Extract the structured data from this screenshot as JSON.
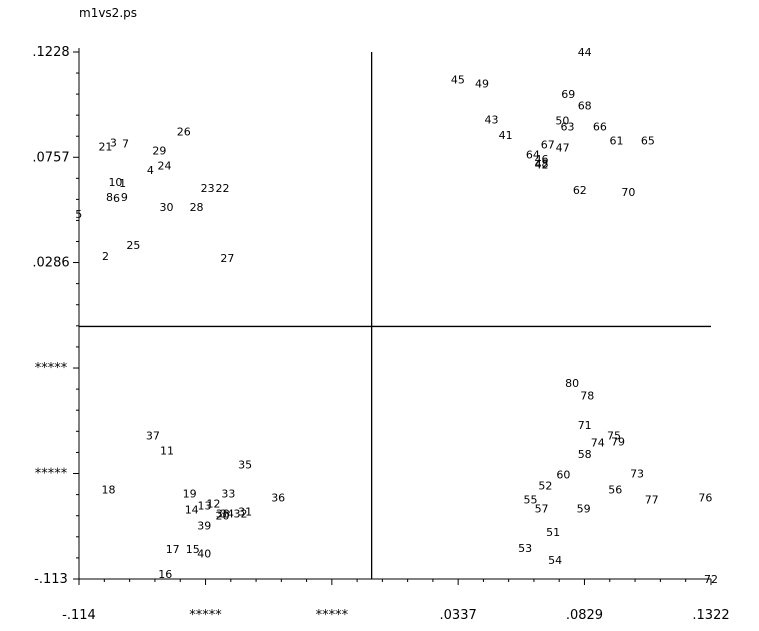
{
  "window": {
    "title": "m1vs2.ps"
  },
  "chart_data": {
    "type": "scatter",
    "title": "m1vs2.ps",
    "xlabel": "",
    "ylabel": "",
    "xlim": [
      -0.114,
      0.1322
    ],
    "ylim": [
      -0.113,
      0.1228
    ],
    "x_ticks": [
      {
        "value": -0.114,
        "label": "-.114"
      },
      {
        "value": -0.0647,
        "label": "*****"
      },
      {
        "value": -0.0155,
        "label": "*****"
      },
      {
        "value": 0.0337,
        "label": ".0337"
      },
      {
        "value": 0.0829,
        "label": ".0829"
      },
      {
        "value": 0.1322,
        "label": ".1322"
      }
    ],
    "y_ticks": [
      {
        "value": 0.1228,
        "label": ".1228"
      },
      {
        "value": 0.0757,
        "label": ".0757"
      },
      {
        "value": 0.0286,
        "label": ".0286"
      },
      {
        "value": -0.0186,
        "label": "*****"
      },
      {
        "value": -0.0658,
        "label": "*****"
      },
      {
        "value": -0.113,
        "label": "-.113"
      }
    ],
    "crosshair": {
      "x": 0.0,
      "y": 0.0
    },
    "grid": false,
    "points": [
      {
        "label": "1",
        "x": -0.097,
        "y": 0.0641
      },
      {
        "label": "2",
        "x": -0.1037,
        "y": 0.0316
      },
      {
        "label": "3",
        "x": -0.1006,
        "y": 0.0823
      },
      {
        "label": "4",
        "x": -0.0862,
        "y": 0.0699
      },
      {
        "label": "5",
        "x": -0.1141,
        "y": 0.0503
      },
      {
        "label": "6",
        "x": -0.0994,
        "y": 0.0574
      },
      {
        "label": "7",
        "x": -0.0959,
        "y": 0.0818
      },
      {
        "label": "8",
        "x": -0.1021,
        "y": 0.0579
      },
      {
        "label": "9",
        "x": -0.0963,
        "y": 0.0579
      },
      {
        "label": "10",
        "x": -0.0998,
        "y": 0.0646
      },
      {
        "label": "11",
        "x": -0.0797,
        "y": -0.0554
      },
      {
        "label": "12",
        "x": -0.0616,
        "y": -0.0792
      },
      {
        "label": "13",
        "x": -0.0651,
        "y": -0.0801
      },
      {
        "label": "14",
        "x": -0.0701,
        "y": -0.0819
      },
      {
        "label": "15",
        "x": -0.0697,
        "y": -0.0996
      },
      {
        "label": "16",
        "x": -0.0804,
        "y": -0.1108
      },
      {
        "label": "17",
        "x": -0.0775,
        "y": -0.0996
      },
      {
        "label": "18",
        "x": -0.1025,
        "y": -0.0729
      },
      {
        "label": "19",
        "x": -0.0709,
        "y": -0.0747
      },
      {
        "label": "20",
        "x": -0.0581,
        "y": -0.0846
      },
      {
        "label": "21",
        "x": -0.1037,
        "y": 0.0805
      },
      {
        "label": "22",
        "x": -0.0581,
        "y": 0.0619
      },
      {
        "label": "23",
        "x": -0.0639,
        "y": 0.0619
      },
      {
        "label": "24",
        "x": -0.0807,
        "y": 0.0721
      },
      {
        "label": "25",
        "x": -0.0928,
        "y": 0.0364
      },
      {
        "label": "26",
        "x": -0.0732,
        "y": 0.0873
      },
      {
        "label": "27",
        "x": -0.0562,
        "y": 0.0306
      },
      {
        "label": "28",
        "x": -0.0682,
        "y": 0.0534
      },
      {
        "label": "29",
        "x": -0.0827,
        "y": 0.0788
      },
      {
        "label": "30",
        "x": -0.0799,
        "y": 0.0534
      },
      {
        "label": "31",
        "x": -0.0493,
        "y": -0.0828
      },
      {
        "label": "32",
        "x": -0.0511,
        "y": -0.0838
      },
      {
        "label": "33",
        "x": -0.0558,
        "y": -0.0747
      },
      {
        "label": "34",
        "x": -0.0564,
        "y": -0.0837
      },
      {
        "label": "35",
        "x": -0.0493,
        "y": -0.0618
      },
      {
        "label": "36",
        "x": -0.0364,
        "y": -0.0765
      },
      {
        "label": "37",
        "x": -0.0852,
        "y": -0.0488
      },
      {
        "label": "38",
        "x": -0.058,
        "y": -0.0837
      },
      {
        "label": "39",
        "x": -0.0652,
        "y": -0.089
      },
      {
        "label": "40",
        "x": -0.0652,
        "y": -0.1015
      },
      {
        "label": "41",
        "x": 0.0522,
        "y": 0.0856
      },
      {
        "label": "42",
        "x": 0.0662,
        "y": 0.0724
      },
      {
        "label": "43",
        "x": 0.0467,
        "y": 0.0925
      },
      {
        "label": "44",
        "x": 0.083,
        "y": 0.1228
      },
      {
        "label": "45",
        "x": 0.0336,
        "y": 0.1106
      },
      {
        "label": "46",
        "x": 0.0662,
        "y": 0.075
      },
      {
        "label": "47",
        "x": 0.0744,
        "y": 0.08
      },
      {
        "label": "48",
        "x": 0.0662,
        "y": 0.0728
      },
      {
        "label": "49",
        "x": 0.043,
        "y": 0.1086
      },
      {
        "label": "50",
        "x": 0.0743,
        "y": 0.0921
      },
      {
        "label": "51",
        "x": 0.0707,
        "y": -0.092
      },
      {
        "label": "52",
        "x": 0.0677,
        "y": -0.0712
      },
      {
        "label": "53",
        "x": 0.0598,
        "y": -0.0992
      },
      {
        "label": "54",
        "x": 0.0715,
        "y": -0.1046
      },
      {
        "label": "55",
        "x": 0.0619,
        "y": -0.0774
      },
      {
        "label": "56",
        "x": 0.0949,
        "y": -0.0729
      },
      {
        "label": "57",
        "x": 0.0662,
        "y": -0.0814
      },
      {
        "label": "58",
        "x": 0.083,
        "y": -0.057
      },
      {
        "label": "59",
        "x": 0.0826,
        "y": -0.0814
      },
      {
        "label": "60",
        "x": 0.0747,
        "y": -0.0663
      },
      {
        "label": "61",
        "x": 0.0954,
        "y": 0.0833
      },
      {
        "label": "62",
        "x": 0.0811,
        "y": 0.061
      },
      {
        "label": "63",
        "x": 0.0763,
        "y": 0.0895
      },
      {
        "label": "64",
        "x": 0.0628,
        "y": 0.077
      },
      {
        "label": "65",
        "x": 0.1076,
        "y": 0.0833
      },
      {
        "label": "66",
        "x": 0.0889,
        "y": 0.0895
      },
      {
        "label": "67",
        "x": 0.0686,
        "y": 0.0815
      },
      {
        "label": "68",
        "x": 0.083,
        "y": 0.0988
      },
      {
        "label": "69",
        "x": 0.0766,
        "y": 0.1041
      },
      {
        "label": "70",
        "x": 0.1,
        "y": 0.0601
      },
      {
        "label": "71",
        "x": 0.083,
        "y": -0.044
      },
      {
        "label": "72",
        "x": 0.1322,
        "y": -0.113
      },
      {
        "label": "73",
        "x": 0.1034,
        "y": -0.0658
      },
      {
        "label": "74",
        "x": 0.0881,
        "y": -0.052
      },
      {
        "label": "75",
        "x": 0.0944,
        "y": -0.0488
      },
      {
        "label": "76",
        "x": 0.13,
        "y": -0.0765
      },
      {
        "label": "77",
        "x": 0.1091,
        "y": -0.0774
      },
      {
        "label": "78",
        "x": 0.084,
        "y": -0.031
      },
      {
        "label": "79",
        "x": 0.096,
        "y": -0.0515
      },
      {
        "label": "80",
        "x": 0.0781,
        "y": -0.0252
      }
    ]
  }
}
